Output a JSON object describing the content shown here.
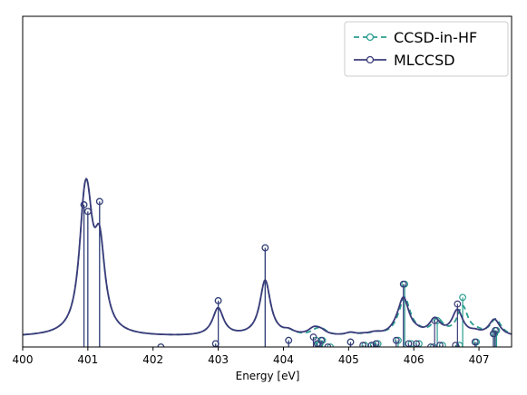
{
  "chart_data": {
    "type": "line",
    "title": "",
    "xlabel": "Energy [eV]",
    "ylabel": "",
    "xlim": [
      400,
      407.5
    ],
    "ylim": [
      0,
      1.0
    ],
    "xticks": [
      "400",
      "401",
      "402",
      "403",
      "404",
      "405",
      "406",
      "407"
    ],
    "yticks": [],
    "grid": false,
    "legend_position": "top-right",
    "colors": {
      "ccsd_in_hf": "#2a9d8f",
      "mlccsd": "#3b3b7a"
    },
    "series": [
      {
        "name": "CCSD-in-HF",
        "style": "dashed",
        "peaks": [
          {
            "x": 400.94,
            "h": 0.43
          },
          {
            "x": 401.0,
            "h": 0.41
          },
          {
            "x": 401.18,
            "h": 0.44
          },
          {
            "x": 402.12,
            "h": 0.0
          },
          {
            "x": 402.96,
            "h": 0.01
          },
          {
            "x": 403.0,
            "h": 0.14
          },
          {
            "x": 403.72,
            "h": 0.3
          },
          {
            "x": 404.08,
            "h": 0.02
          },
          {
            "x": 404.5,
            "h": 0.02
          },
          {
            "x": 404.56,
            "h": 0.01
          },
          {
            "x": 404.6,
            "h": 0.02
          },
          {
            "x": 404.72,
            "h": 0.0
          },
          {
            "x": 405.03,
            "h": 0.015
          },
          {
            "x": 405.25,
            "h": 0.005
          },
          {
            "x": 405.38,
            "h": 0.005
          },
          {
            "x": 405.45,
            "h": 0.01
          },
          {
            "x": 405.76,
            "h": 0.02
          },
          {
            "x": 405.86,
            "h": 0.19
          },
          {
            "x": 405.96,
            "h": 0.01
          },
          {
            "x": 406.08,
            "h": 0.01
          },
          {
            "x": 406.3,
            "h": 0.0
          },
          {
            "x": 406.36,
            "h": 0.08
          },
          {
            "x": 406.44,
            "h": 0.005
          },
          {
            "x": 406.7,
            "h": 0.005
          },
          {
            "x": 406.75,
            "h": 0.15
          },
          {
            "x": 406.96,
            "h": 0.015
          },
          {
            "x": 407.24,
            "h": 0.04
          },
          {
            "x": 407.27,
            "h": 0.05
          }
        ]
      },
      {
        "name": "MLCCSD",
        "style": "solid",
        "peaks": [
          {
            "x": 400.94,
            "h": 0.43
          },
          {
            "x": 401.0,
            "h": 0.41
          },
          {
            "x": 401.18,
            "h": 0.44
          },
          {
            "x": 402.12,
            "h": 0.0
          },
          {
            "x": 402.96,
            "h": 0.01
          },
          {
            "x": 403.0,
            "h": 0.14
          },
          {
            "x": 403.72,
            "h": 0.3
          },
          {
            "x": 404.08,
            "h": 0.02
          },
          {
            "x": 404.46,
            "h": 0.03
          },
          {
            "x": 404.52,
            "h": 0.01
          },
          {
            "x": 404.58,
            "h": 0.02
          },
          {
            "x": 404.68,
            "h": 0.0
          },
          {
            "x": 405.03,
            "h": 0.015
          },
          {
            "x": 405.22,
            "h": 0.005
          },
          {
            "x": 405.35,
            "h": 0.005
          },
          {
            "x": 405.42,
            "h": 0.01
          },
          {
            "x": 405.73,
            "h": 0.02
          },
          {
            "x": 405.84,
            "h": 0.19
          },
          {
            "x": 405.92,
            "h": 0.01
          },
          {
            "x": 406.04,
            "h": 0.01
          },
          {
            "x": 406.26,
            "h": 0.0
          },
          {
            "x": 406.32,
            "h": 0.08
          },
          {
            "x": 406.4,
            "h": 0.005
          },
          {
            "x": 406.64,
            "h": 0.005
          },
          {
            "x": 406.67,
            "h": 0.13
          },
          {
            "x": 406.94,
            "h": 0.015
          },
          {
            "x": 407.22,
            "h": 0.04
          },
          {
            "x": 407.25,
            "h": 0.05
          }
        ]
      }
    ]
  }
}
